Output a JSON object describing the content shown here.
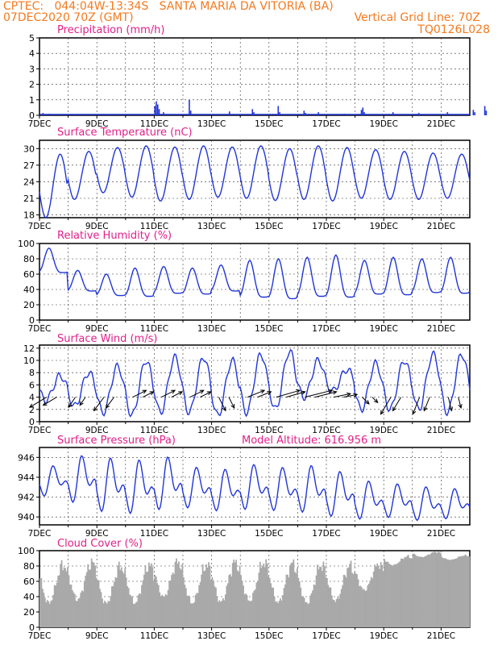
{
  "header": {
    "line1": "CPTEC:   044:04W-13:34S   SANTA MARIA DA VITORIA (BA)",
    "line2_left": "07DEC2020 70Z (GMT)",
    "line2_right": "Vertical Grid Line: 70Z",
    "line3_right": "TQ0126L028"
  },
  "colors": {
    "header": "#f47a1f",
    "title": "#e0208a",
    "line": "#2236d8",
    "cloud": "#a9a9a9",
    "grid": "#333333"
  },
  "chart_data": [
    {
      "id": "precip",
      "type": "bar",
      "title": "Precipitation (mm/h)",
      "ylim": [
        0,
        5
      ],
      "yticks": [
        0,
        1,
        2,
        3,
        4,
        5
      ],
      "xticks": [
        "7DEC",
        "9DEC",
        "11DEC",
        "13DEC",
        "15DEC",
        "17DEC",
        "19DEC",
        "21DEC"
      ],
      "x_unit": "days since 7DEC 00Z",
      "bars": [
        [
          0.1,
          0.15
        ],
        [
          0.3,
          0.1
        ],
        [
          1.2,
          0.05
        ],
        [
          2.4,
          0.05
        ],
        [
          4.0,
          0.6
        ],
        [
          4.05,
          0.9
        ],
        [
          4.1,
          0.7
        ],
        [
          4.15,
          0.4
        ],
        [
          4.3,
          0.2
        ],
        [
          5.2,
          1.0
        ],
        [
          5.25,
          0.3
        ],
        [
          6.6,
          0.25
        ],
        [
          7.4,
          0.4
        ],
        [
          7.45,
          0.2
        ],
        [
          8.3,
          0.6
        ],
        [
          8.35,
          0.2
        ],
        [
          9.2,
          0.3
        ],
        [
          9.25,
          0.15
        ],
        [
          9.7,
          0.2
        ],
        [
          10.6,
          0.1
        ],
        [
          11.2,
          0.35
        ],
        [
          11.25,
          0.5
        ],
        [
          11.3,
          0.2
        ],
        [
          12.3,
          0.2
        ],
        [
          13.2,
          0.15
        ],
        [
          14.2,
          0.2
        ],
        [
          15.1,
          0.35
        ],
        [
          15.15,
          0.2
        ],
        [
          15.5,
          0.6
        ],
        [
          15.55,
          0.3
        ]
      ]
    },
    {
      "id": "temp",
      "type": "line",
      "title": "Surface Temperature (nC)",
      "ylim": [
        17.5,
        31.5
      ],
      "yticks": [
        18,
        21,
        24,
        27,
        30
      ],
      "xticks": [
        "7DEC",
        "9DEC",
        "11DEC",
        "13DEC",
        "15DEC",
        "17DEC",
        "19DEC",
        "21DEC"
      ],
      "min": [
        17.5,
        20.8,
        22.0,
        21.2,
        20.5,
        20.8,
        21.2,
        21.0,
        20.6,
        20.8,
        20.5,
        21.0,
        20.8,
        20.8,
        21.0
      ],
      "max": [
        29.0,
        29.5,
        30.2,
        30.5,
        30.3,
        30.5,
        30.3,
        30.5,
        30.0,
        30.5,
        30.2,
        29.8,
        29.5,
        29.2,
        29.0
      ]
    },
    {
      "id": "rh",
      "type": "line",
      "title": "Relative Humidity (%)",
      "ylim": [
        0,
        100
      ],
      "yticks": [
        0,
        20,
        40,
        60,
        80,
        100
      ],
      "xticks": [
        "7DEC",
        "9DEC",
        "11DEC",
        "13DEC",
        "15DEC",
        "17DEC",
        "19DEC",
        "21DEC"
      ],
      "min": [
        62,
        38,
        32,
        31,
        35,
        34,
        38,
        30,
        28,
        31,
        30,
        34,
        33,
        36,
        35
      ],
      "max": [
        94,
        65,
        60,
        68,
        70,
        68,
        72,
        78,
        80,
        82,
        85,
        78,
        82,
        80,
        82
      ]
    },
    {
      "id": "wind",
      "type": "line",
      "title": "Surface Wind (m/s)",
      "ylim": [
        0,
        12.5
      ],
      "yticks": [
        0,
        2,
        4,
        6,
        8,
        10,
        12
      ],
      "xticks": [
        "7DEC",
        "9DEC",
        "11DEC",
        "13DEC",
        "15DEC",
        "17DEC",
        "19DEC",
        "21DEC"
      ],
      "min": [
        3.5,
        2.5,
        1.5,
        1.0,
        1.5,
        1.5,
        1.0,
        1.5,
        2.0,
        4.0,
        5.0,
        2.0,
        2.0,
        2.0,
        1.5
      ],
      "max": [
        7.5,
        8.0,
        9.0,
        10.0,
        10.5,
        10.5,
        10.0,
        11.0,
        11.5,
        10.0,
        8.5,
        9.5,
        10.0,
        11.0,
        11.0
      ],
      "vectors_dx_dy": [
        [
          -5,
          -3
        ],
        [
          -2,
          -3
        ],
        [
          -3,
          -4
        ],
        [
          4,
          2
        ],
        [
          4,
          2
        ],
        [
          4,
          2
        ],
        [
          2,
          -4
        ],
        [
          5,
          2
        ],
        [
          7,
          2
        ],
        [
          8,
          2
        ],
        [
          5,
          1
        ],
        [
          2,
          -2
        ],
        [
          -3,
          -5
        ],
        [
          -2,
          -5
        ],
        [
          1,
          -4
        ]
      ]
    },
    {
      "id": "press",
      "type": "line",
      "title": "Surface Pressure (hPa)",
      "annotation": "Model Altitude: 616.956 m",
      "ylim": [
        939.2,
        947.0
      ],
      "yticks": [
        940,
        942,
        944,
        946
      ],
      "xticks": [
        "7DEC",
        "9DEC",
        "11DEC",
        "13DEC",
        "15DEC",
        "17DEC",
        "19DEC",
        "21DEC"
      ],
      "min": [
        941.8,
        941.0,
        940.0,
        939.8,
        940.2,
        940.5,
        940.2,
        940.3,
        940.2,
        940.0,
        939.6,
        939.4,
        939.6,
        939.3,
        939.5
      ],
      "max": [
        945.3,
        946.4,
        946.2,
        946.0,
        946.3,
        945.2,
        945.0,
        945.5,
        945.2,
        945.4,
        944.8,
        943.8,
        943.5,
        943.2,
        943.0
      ]
    },
    {
      "id": "cloud",
      "type": "bar",
      "title": "Cloud Cover (%)",
      "ylim": [
        0,
        100
      ],
      "yticks": [
        0,
        20,
        40,
        60,
        80,
        100
      ],
      "xticks": [
        "7DEC",
        "9DEC",
        "11DEC",
        "13DEC",
        "15DEC",
        "17DEC",
        "19DEC",
        "21DEC"
      ],
      "daily_max": [
        92,
        95,
        90,
        92,
        95,
        92,
        96,
        95,
        94,
        92,
        90,
        90,
        95,
        100,
        95
      ],
      "daily_min": [
        5,
        10,
        5,
        5,
        15,
        5,
        5,
        8,
        5,
        5,
        10,
        30,
        75,
        88,
        85
      ]
    }
  ]
}
